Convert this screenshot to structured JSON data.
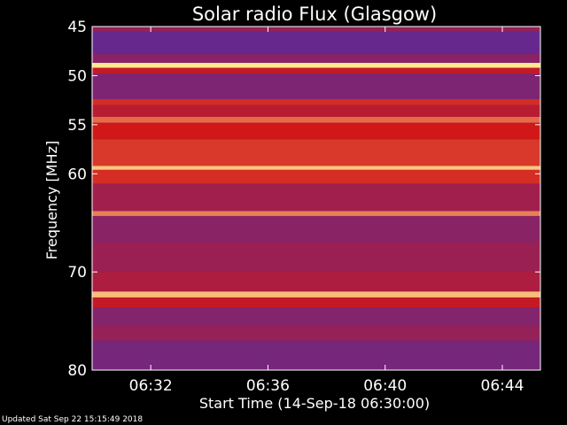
{
  "chart_data": {
    "type": "heatmap",
    "title": "Solar radio Flux (Glasgow)",
    "xlabel": "Start Time (14-Sep-18 06:30:00)",
    "ylabel": "Frequency [MHz]",
    "x_range_minutes": [
      0.0,
      15.3
    ],
    "ylim": [
      45,
      80
    ],
    "x_ticks": [
      {
        "minute": 2,
        "label": "06:32"
      },
      {
        "minute": 6,
        "label": "06:36"
      },
      {
        "minute": 10,
        "label": "06:40"
      },
      {
        "minute": 14,
        "label": "06:44"
      }
    ],
    "y_ticks": [
      {
        "value": 45,
        "label": "45"
      },
      {
        "value": 50,
        "label": "50"
      },
      {
        "value": 55,
        "label": "55"
      },
      {
        "value": 60,
        "label": "60"
      },
      {
        "value": 70,
        "label": "70"
      },
      {
        "value": 80,
        "label": "80"
      }
    ],
    "colors": {
      "low": "#5a2a9a",
      "mid": "#d01818",
      "high": "#ffe890",
      "background": "#000000"
    },
    "bands": [
      {
        "f0": 45.0,
        "f1": 45.5,
        "level": 0.25
      },
      {
        "f0": 45.5,
        "f1": 47.8,
        "level": 0.05
      },
      {
        "f0": 47.8,
        "f1": 48.7,
        "level": 0.2
      },
      {
        "f0": 48.7,
        "f1": 49.2,
        "level": 1.0
      },
      {
        "f0": 49.2,
        "f1": 49.8,
        "level": 0.45
      },
      {
        "f0": 49.8,
        "f1": 52.4,
        "level": 0.15
      },
      {
        "f0": 52.4,
        "f1": 53.0,
        "level": 0.55
      },
      {
        "f0": 53.0,
        "f1": 54.2,
        "level": 0.4
      },
      {
        "f0": 54.2,
        "f1": 54.8,
        "level": 0.7
      },
      {
        "f0": 54.8,
        "f1": 56.5,
        "level": 0.5
      },
      {
        "f0": 56.5,
        "f1": 59.2,
        "level": 0.58
      },
      {
        "f0": 59.2,
        "f1": 59.6,
        "level": 0.92
      },
      {
        "f0": 59.6,
        "f1": 61.0,
        "level": 0.55
      },
      {
        "f0": 61.0,
        "f1": 63.8,
        "level": 0.3
      },
      {
        "f0": 63.8,
        "f1": 64.3,
        "level": 0.75
      },
      {
        "f0": 64.3,
        "f1": 67.0,
        "level": 0.2
      },
      {
        "f0": 67.0,
        "f1": 70.0,
        "level": 0.27
      },
      {
        "f0": 70.0,
        "f1": 72.0,
        "level": 0.35
      },
      {
        "f0": 72.0,
        "f1": 72.6,
        "level": 0.9
      },
      {
        "f0": 72.6,
        "f1": 73.6,
        "level": 0.45
      },
      {
        "f0": 73.6,
        "f1": 75.5,
        "level": 0.18
      },
      {
        "f0": 75.5,
        "f1": 77.0,
        "level": 0.25
      },
      {
        "f0": 77.0,
        "f1": 80.0,
        "level": 0.12
      }
    ]
  },
  "footer": {
    "updated_text": "Updated Sat Sep 22 15:15:49 2018"
  }
}
